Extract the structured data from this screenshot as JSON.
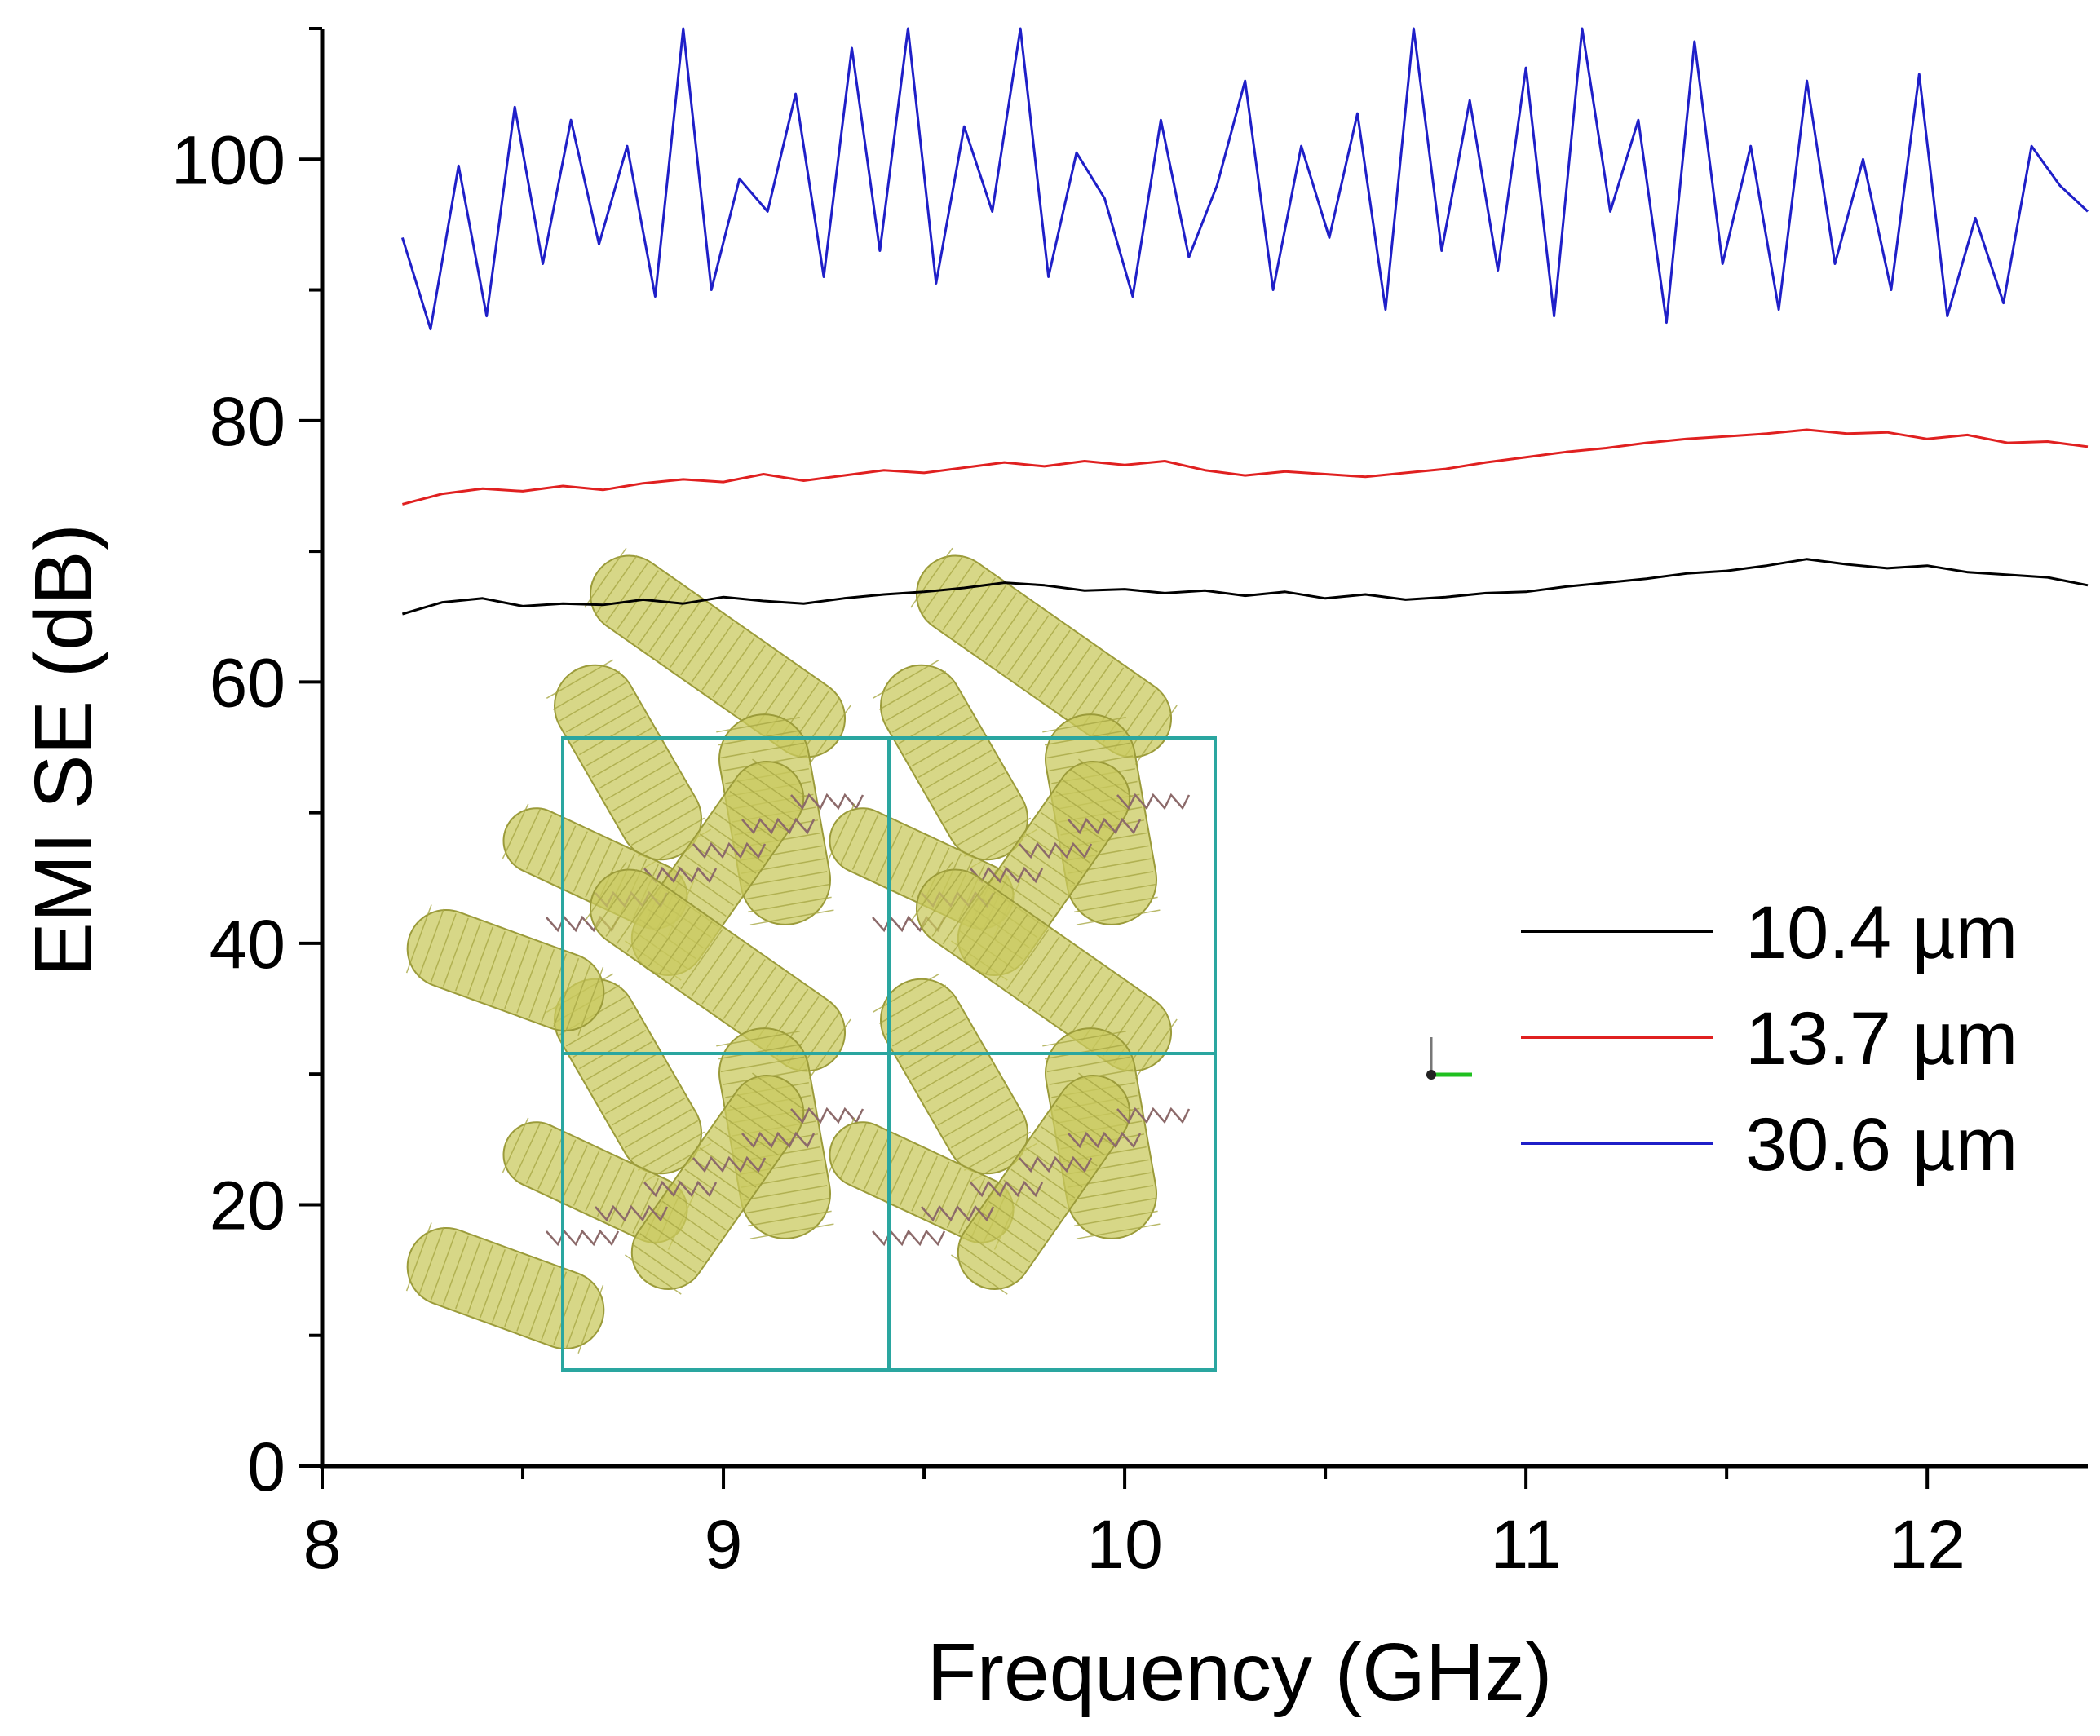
{
  "chart_data": {
    "type": "line",
    "title": "",
    "xlabel": "Frequency (GHz)",
    "ylabel": "EMI SE (dB)",
    "xlim": [
      8,
      12.4
    ],
    "ylim": [
      0,
      110
    ],
    "xticks": [
      8,
      9,
      10,
      11,
      12
    ],
    "yticks": [
      0,
      20,
      40,
      60,
      80,
      100
    ],
    "legend_position": "middle-right",
    "grid": false,
    "series": [
      {
        "name": "10.4 µm",
        "color": "#000000",
        "x": [
          8.2,
          8.3,
          8.4,
          8.5,
          8.6,
          8.7,
          8.8,
          8.9,
          9.0,
          9.1,
          9.2,
          9.3,
          9.4,
          9.5,
          9.6,
          9.7,
          9.8,
          9.9,
          10.0,
          10.1,
          10.2,
          10.3,
          10.4,
          10.5,
          10.6,
          10.7,
          10.8,
          10.9,
          11.0,
          11.1,
          11.2,
          11.3,
          11.4,
          11.5,
          11.6,
          11.7,
          11.8,
          11.9,
          12.0,
          12.1,
          12.2,
          12.3,
          12.4
        ],
        "y": [
          65.2,
          66.1,
          66.4,
          65.8,
          66.0,
          65.9,
          66.3,
          66.0,
          66.5,
          66.2,
          66.0,
          66.4,
          66.7,
          66.9,
          67.2,
          67.6,
          67.4,
          67.0,
          67.1,
          66.8,
          67.0,
          66.6,
          66.9,
          66.4,
          66.7,
          66.3,
          66.5,
          66.8,
          66.9,
          67.3,
          67.6,
          67.9,
          68.3,
          68.5,
          68.9,
          69.4,
          69.0,
          68.7,
          68.9,
          68.4,
          68.2,
          68.0,
          67.4
        ]
      },
      {
        "name": "13.7 µm",
        "color": "#e02020",
        "x": [
          8.2,
          8.3,
          8.4,
          8.5,
          8.6,
          8.7,
          8.8,
          8.9,
          9.0,
          9.1,
          9.2,
          9.3,
          9.4,
          9.5,
          9.6,
          9.7,
          9.8,
          9.9,
          10.0,
          10.1,
          10.2,
          10.3,
          10.4,
          10.5,
          10.6,
          10.7,
          10.8,
          10.9,
          11.0,
          11.1,
          11.2,
          11.3,
          11.4,
          11.5,
          11.6,
          11.7,
          11.8,
          11.9,
          12.0,
          12.1,
          12.2,
          12.3,
          12.4
        ],
        "y": [
          73.6,
          74.4,
          74.8,
          74.6,
          75.0,
          74.7,
          75.2,
          75.5,
          75.3,
          75.9,
          75.4,
          75.8,
          76.2,
          76.0,
          76.4,
          76.8,
          76.5,
          76.9,
          76.6,
          76.9,
          76.2,
          75.8,
          76.1,
          75.9,
          75.7,
          76.0,
          76.3,
          76.8,
          77.2,
          77.6,
          77.9,
          78.3,
          78.6,
          78.8,
          79.0,
          79.3,
          79.0,
          79.1,
          78.6,
          78.9,
          78.3,
          78.4,
          78.0
        ]
      },
      {
        "name": "30.6 µm",
        "color": "#1f1fc8",
        "x": [
          8.2,
          8.27,
          8.34,
          8.41,
          8.48,
          8.55,
          8.62,
          8.69,
          8.76,
          8.83,
          8.9,
          8.97,
          9.04,
          9.11,
          9.18,
          9.25,
          9.32,
          9.39,
          9.46,
          9.53,
          9.6,
          9.67,
          9.74,
          9.81,
          9.88,
          9.95,
          10.02,
          10.09,
          10.16,
          10.23,
          10.3,
          10.37,
          10.44,
          10.51,
          10.58,
          10.65,
          10.72,
          10.79,
          10.86,
          10.93,
          11.0,
          11.07,
          11.14,
          11.21,
          11.28,
          11.35,
          11.42,
          11.49,
          11.56,
          11.63,
          11.7,
          11.77,
          11.84,
          11.91,
          11.98,
          12.05,
          12.12,
          12.19,
          12.26,
          12.33,
          12.4
        ],
        "y": [
          94.0,
          87.0,
          99.5,
          88.0,
          104.0,
          92.0,
          103.0,
          93.5,
          101.0,
          89.5,
          110.0,
          90.0,
          98.5,
          96.0,
          105.0,
          91.0,
          108.5,
          93.0,
          110.0,
          90.5,
          102.5,
          96.0,
          110.0,
          91.0,
          100.5,
          97.0,
          89.5,
          103.0,
          92.5,
          98.0,
          106.0,
          90.0,
          101.0,
          94.0,
          103.5,
          88.5,
          110.0,
          93.0,
          104.5,
          91.5,
          107.0,
          88.0,
          110.0,
          96.0,
          103.0,
          87.5,
          109.0,
          92.0,
          101.0,
          88.5,
          106.0,
          92.0,
          100.0,
          90.0,
          106.5,
          88.0,
          95.5,
          89.0,
          101.0,
          98.0,
          96.0
        ]
      }
    ]
  },
  "inset": {
    "description_icon": "molecular-structure-icon",
    "frame_color": "#2aa6a0",
    "tube_color": "#c9c95f",
    "chain_color": "#8c6a6a"
  }
}
